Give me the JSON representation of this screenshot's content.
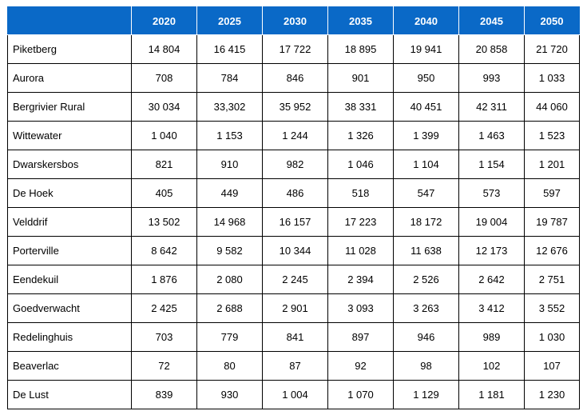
{
  "table": {
    "columns": [
      "",
      "2020",
      "2025",
      "2030",
      "2035",
      "2040",
      "2045",
      "2050"
    ],
    "rows": [
      {
        "name": "Piketberg",
        "values": [
          "14 804",
          "16 415",
          "17 722",
          "18 895",
          "19 941",
          "20 858",
          "21 720"
        ]
      },
      {
        "name": "Aurora",
        "values": [
          "708",
          "784",
          "846",
          "901",
          "950",
          "993",
          "1 033"
        ]
      },
      {
        "name": "Bergrivier Rural",
        "values": [
          "30 034",
          "33,302",
          "35 952",
          "38 331",
          "40 451",
          "42 311",
          "44 060"
        ]
      },
      {
        "name": "Wittewater",
        "values": [
          "1 040",
          "1 153",
          "1 244",
          "1 326",
          "1 399",
          "1 463",
          "1 523"
        ]
      },
      {
        "name": "Dwarskersbos",
        "values": [
          "821",
          "910",
          "982",
          "1 046",
          "1 104",
          "1 154",
          "1 201"
        ]
      },
      {
        "name": "De Hoek",
        "values": [
          "405",
          "449",
          "486",
          "518",
          "547",
          "573",
          "597"
        ]
      },
      {
        "name": "Velddrif",
        "values": [
          "13 502",
          "14 968",
          "16 157",
          "17 223",
          "18 172",
          "19 004",
          "19 787"
        ]
      },
      {
        "name": "Porterville",
        "values": [
          "8 642",
          "9 582",
          "10 344",
          "11 028",
          "11 638",
          "12 173",
          "12 676"
        ]
      },
      {
        "name": "Eendekuil",
        "values": [
          "1 876",
          "2 080",
          "2 245",
          "2 394",
          "2 526",
          "2 642",
          "2 751"
        ]
      },
      {
        "name": "Goedverwacht",
        "values": [
          "2 425",
          "2 688",
          "2 901",
          "3 093",
          "3 263",
          "3 412",
          "3 552"
        ]
      },
      {
        "name": "Redelinghuis",
        "values": [
          "703",
          "779",
          "841",
          "897",
          "946",
          "989",
          "1 030"
        ]
      },
      {
        "name": "Beaverlac",
        "values": [
          "72",
          "80",
          "87",
          "92",
          "98",
          "102",
          "107"
        ]
      },
      {
        "name": "De Lust",
        "values": [
          "839",
          "930",
          "1 004",
          "1 070",
          "1 129",
          "1 181",
          "1 230"
        ]
      }
    ]
  },
  "colors": {
    "header_background": "#0a69c7",
    "header_text": "#ffffff",
    "border": "#000000"
  }
}
